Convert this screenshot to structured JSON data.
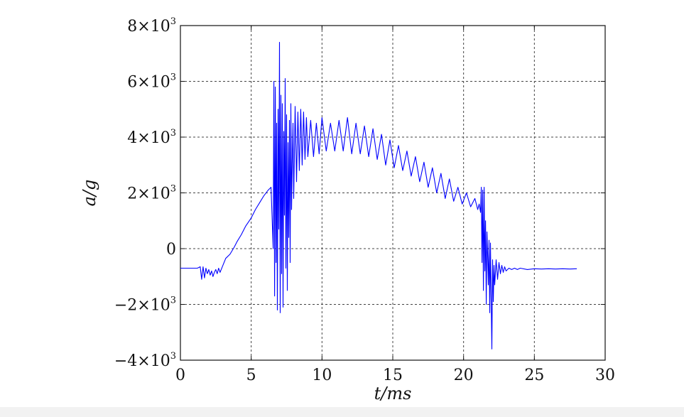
{
  "chart_data": {
    "type": "line",
    "xlabel": "t/ms",
    "ylabel": "a/g",
    "xlim": [
      0,
      30
    ],
    "ylim": [
      -4000,
      8000
    ],
    "grid": true,
    "x_ticks": [
      {
        "value": 0,
        "label": "0"
      },
      {
        "value": 5,
        "label": "5"
      },
      {
        "value": 10,
        "label": "10"
      },
      {
        "value": 15,
        "label": "15"
      },
      {
        "value": 20,
        "label": "20"
      },
      {
        "value": 25,
        "label": "25"
      },
      {
        "value": 30,
        "label": "30"
      }
    ],
    "y_ticks": [
      {
        "value": 8000,
        "mantissa": "8×10",
        "exp": "3"
      },
      {
        "value": 6000,
        "mantissa": "6×10",
        "exp": "3"
      },
      {
        "value": 4000,
        "mantissa": "4×10",
        "exp": "3"
      },
      {
        "value": 2000,
        "mantissa": "2×10",
        "exp": "3"
      },
      {
        "value": 0,
        "mantissa": "0",
        "exp": ""
      },
      {
        "value": -2000,
        "mantissa": "−2×10",
        "exp": "3"
      },
      {
        "value": -4000,
        "mantissa": "−4×10",
        "exp": "3"
      }
    ],
    "series": [
      {
        "color": "#0000ff",
        "x": [
          0,
          1.0,
          1.2,
          1.4,
          1.5,
          1.6,
          1.7,
          1.8,
          1.9,
          2.0,
          2.1,
          2.2,
          2.3,
          2.4,
          2.5,
          2.6,
          2.7,
          2.8,
          3.0,
          3.2,
          3.5,
          3.8,
          4.0,
          4.3,
          4.6,
          5.0,
          5.3,
          5.6,
          5.9,
          6.2,
          6.4,
          6.55,
          6.6,
          6.65,
          6.7,
          6.75,
          6.8,
          6.85,
          6.9,
          6.95,
          7.0,
          7.05,
          7.1,
          7.15,
          7.2,
          7.25,
          7.3,
          7.35,
          7.4,
          7.45,
          7.5,
          7.55,
          7.6,
          7.65,
          7.7,
          7.75,
          7.8,
          7.85,
          7.9,
          7.95,
          8.0,
          8.1,
          8.2,
          8.3,
          8.4,
          8.5,
          8.6,
          8.7,
          8.8,
          8.9,
          9.0,
          9.2,
          9.4,
          9.6,
          9.8,
          10.0,
          10.3,
          10.6,
          10.9,
          11.2,
          11.5,
          11.8,
          12.1,
          12.4,
          12.7,
          13.0,
          13.3,
          13.6,
          13.9,
          14.2,
          14.5,
          14.8,
          15.1,
          15.4,
          15.7,
          16.0,
          16.3,
          16.6,
          16.9,
          17.2,
          17.5,
          17.8,
          18.1,
          18.4,
          18.7,
          19.0,
          19.3,
          19.6,
          19.9,
          20.2,
          20.5,
          20.8,
          21.0,
          21.1,
          21.2,
          21.25,
          21.3,
          21.35,
          21.4,
          21.45,
          21.5,
          21.55,
          21.6,
          21.65,
          21.7,
          21.75,
          21.8,
          21.85,
          21.9,
          21.95,
          22.0,
          22.05,
          22.1,
          22.15,
          22.2,
          22.3,
          22.4,
          22.5,
          22.6,
          22.7,
          22.8,
          22.9,
          23.0,
          23.2,
          23.4,
          23.6,
          23.8,
          24.0,
          24.5,
          25.0,
          25.5,
          26.0,
          26.5,
          27.0,
          27.5,
          28.0
        ],
        "values": [
          -700,
          -700,
          -700,
          -650,
          -1100,
          -650,
          -1050,
          -700,
          -900,
          -750,
          -950,
          -800,
          -1000,
          -850,
          -750,
          -900,
          -700,
          -850,
          -600,
          -350,
          -200,
          50,
          250,
          500,
          800,
          1100,
          1400,
          1650,
          1900,
          2100,
          2200,
          0,
          6000,
          -1700,
          5800,
          -500,
          4500,
          -2200,
          5000,
          700,
          7400,
          -2300,
          5500,
          -900,
          5200,
          -2100,
          4200,
          1200,
          6100,
          -700,
          4800,
          -1500,
          3800,
          400,
          4600,
          -500,
          5200,
          1400,
          3200,
          4500,
          1800,
          5100,
          2400,
          4900,
          2800,
          5000,
          3000,
          4900,
          3200,
          4700,
          3300,
          4600,
          3300,
          4500,
          3400,
          4700,
          3500,
          4500,
          3500,
          4600,
          3500,
          4700,
          3400,
          4500,
          3400,
          4400,
          3300,
          4300,
          3200,
          4100,
          3000,
          3900,
          2900,
          3700,
          2800,
          3500,
          2600,
          3300,
          2400,
          3100,
          2200,
          2900,
          2000,
          2700,
          1800,
          2500,
          1700,
          2200,
          1600,
          2000,
          1500,
          1800,
          1400,
          1600,
          1300,
          2200,
          -500,
          2100,
          -1500,
          2200,
          -800,
          1000,
          -2000,
          600,
          -300,
          -1300,
          300,
          -2300,
          200,
          -1800,
          -3600,
          -400,
          -1900,
          -600,
          -1300,
          -400,
          -1100,
          -500,
          -900,
          -600,
          -850,
          -650,
          -800,
          -700,
          -750,
          -700,
          -750,
          -700,
          -750,
          -720,
          -730,
          -720,
          -730,
          -720,
          -730,
          -720
        ]
      }
    ]
  }
}
